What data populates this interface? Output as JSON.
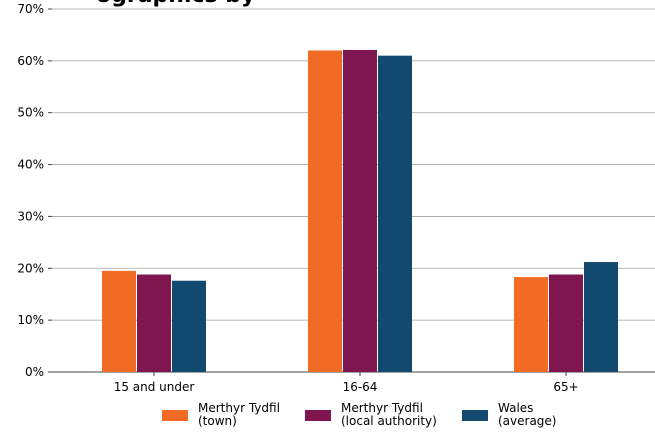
{
  "title_fragment": "ographics by",
  "chart_data": {
    "type": "bar",
    "categories": [
      "15 and under",
      "16-64",
      "65+"
    ],
    "series": [
      {
        "name_line1": "Merthyr Tydfil",
        "name_line2": "(town)",
        "color": "#f26b24",
        "values": [
          19.5,
          62.0,
          18.3
        ]
      },
      {
        "name_line1": "Merthyr Tydfil",
        "name_line2": "(local authority)",
        "color": "#7f1650",
        "values": [
          18.8,
          62.1,
          18.8
        ]
      },
      {
        "name_line1": "Wales",
        "name_line2": "(average)",
        "color": "#124a6f",
        "values": [
          17.6,
          61.0,
          21.2
        ]
      }
    ],
    "y_ticks": [
      "0%",
      "10%",
      "20%",
      "30%",
      "40%",
      "50%",
      "60%",
      "70%"
    ],
    "ylim": [
      0,
      70
    ],
    "grid": true,
    "legend_position": "bottom"
  }
}
